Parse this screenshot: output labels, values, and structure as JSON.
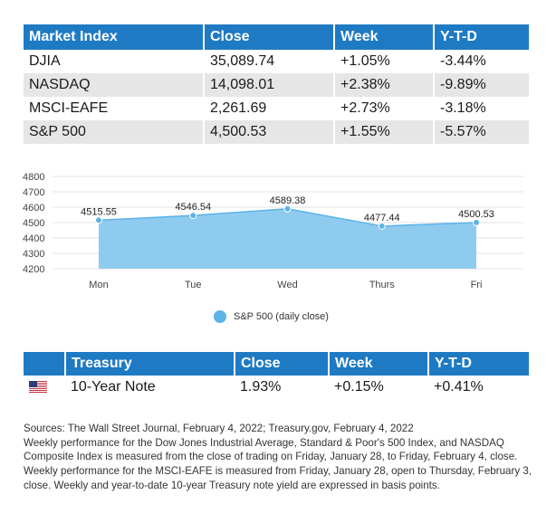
{
  "market_table": {
    "headers": [
      "Market Index",
      "Close",
      "Week",
      "Y-T-D"
    ],
    "rows": [
      [
        "DJIA",
        "35,089.74",
        "+1.05%",
        "-3.44%"
      ],
      [
        "NASDAQ",
        "14,098.01",
        "+2.38%",
        "-9.89%"
      ],
      [
        "MSCI-EAFE",
        "2,261.69",
        "+2.73%",
        "-3.18%"
      ],
      [
        "S&P 500",
        "4,500.53",
        "+1.55%",
        "-5.57%"
      ]
    ]
  },
  "chart_data": {
    "type": "area",
    "categories": [
      "Mon",
      "Tue",
      "Wed",
      "Thurs",
      "Fri"
    ],
    "series": [
      {
        "name": "S&P 500 (daily close)",
        "values": [
          4515.55,
          4546.54,
          4589.38,
          4477.44,
          4500.53
        ]
      }
    ],
    "value_labels": [
      "4515.55",
      "4546.54",
      "4589.38",
      "4477.44",
      "4500.53"
    ],
    "ylim": [
      4200,
      4800
    ],
    "yticks": [
      4200,
      4300,
      4400,
      4500,
      4600,
      4700,
      4800
    ],
    "grid": true,
    "legend_position": "bottom",
    "colors": {
      "fill": "#8fcbef",
      "line": "#5bb3e8",
      "marker": "#5bb3e8"
    }
  },
  "treasury_table": {
    "headers": [
      "",
      "Treasury",
      "Close",
      "Week",
      "Y-T-D"
    ],
    "rows": [
      {
        "flag_icon": "us-flag-icon",
        "name": "10-Year Note",
        "close": "1.93%",
        "week": "+0.15%",
        "ytd": "+0.41%"
      }
    ]
  },
  "notes": [
    "Sources: The Wall Street Journal, February 4, 2022; Treasury.gov, February 4, 2022",
    "Weekly performance for the Dow Jones Industrial Average, Standard & Poor's 500 Index, and NASDAQ Composite Index is measured from the close of trading on Friday, January 28, to Friday, February 4, close. Weekly performance for the MSCI-EAFE is measured from Friday, January 28, open to Thursday, February 3, close. Weekly and year-to-date 10-year Treasury note yield are expressed in basis points."
  ],
  "colors": {
    "header_bg": "#1f7ac4",
    "stripe": "#e6e6e6"
  }
}
